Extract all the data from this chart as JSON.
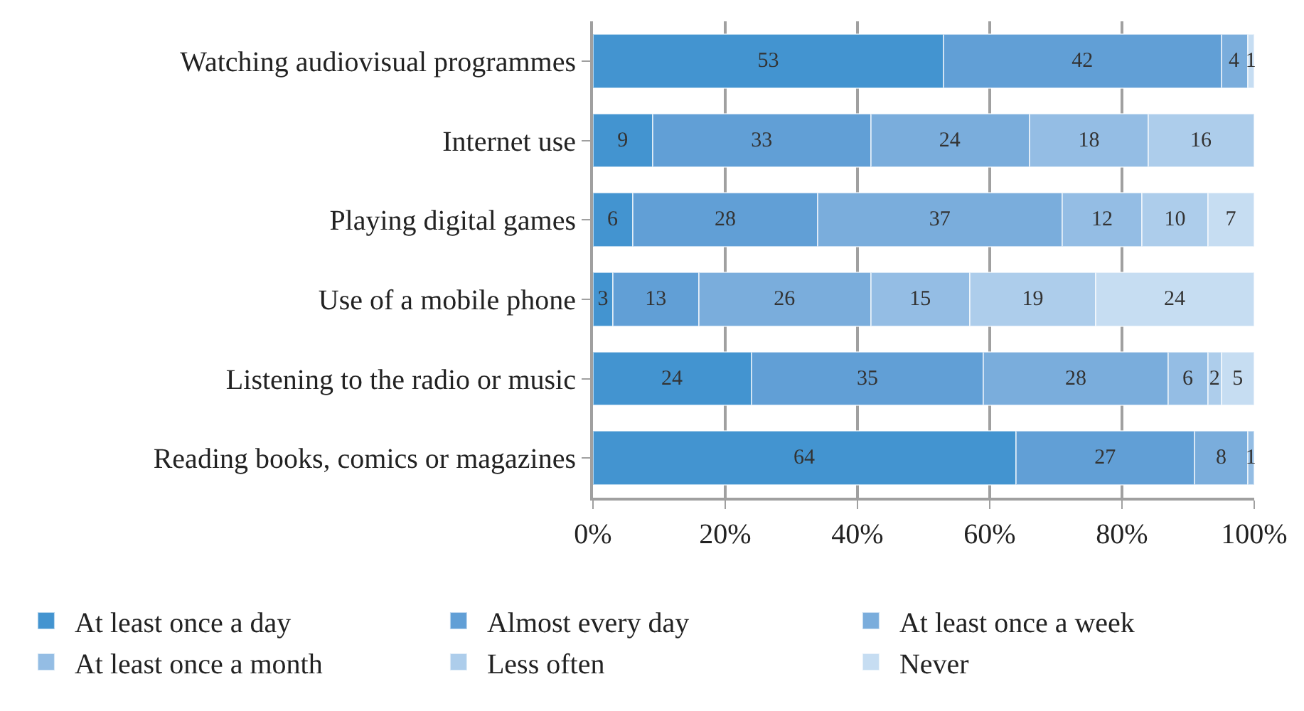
{
  "chart_data": {
    "type": "bar",
    "orientation": "horizontal",
    "stacked": true,
    "data_labels": true,
    "categories": [
      "Watching audiovisual programmes",
      "Internet use",
      "Playing digital games",
      "Use of a mobile phone",
      "Listening to the radio or music",
      "Reading books, comics or magazines"
    ],
    "series": [
      {
        "name": "At least once a day",
        "color": "#4394d0",
        "values": [
          53,
          9,
          6,
          3,
          24,
          64
        ]
      },
      {
        "name": "Almost every day",
        "color": "#619fd6",
        "values": [
          42,
          33,
          28,
          13,
          35,
          27
        ]
      },
      {
        "name": "At least once a week",
        "color": "#7aaddc",
        "values": [
          4,
          24,
          37,
          26,
          28,
          8
        ]
      },
      {
        "name": "At least once a month",
        "color": "#94bde4",
        "values": [
          null,
          18,
          12,
          15,
          6,
          1
        ]
      },
      {
        "name": "Less often",
        "color": "#adcdeb",
        "values": [
          null,
          16,
          10,
          19,
          2,
          null
        ]
      },
      {
        "name": "Never",
        "color": "#c6ddf2",
        "values": [
          1,
          null,
          7,
          24,
          5,
          null
        ]
      }
    ],
    "xlim": [
      0,
      100
    ],
    "xticks": [
      {
        "value": 0,
        "label": "0%"
      },
      {
        "value": 20,
        "label": "20%"
      },
      {
        "value": 40,
        "label": "40%"
      },
      {
        "value": 60,
        "label": "60%"
      },
      {
        "value": 80,
        "label": "80%"
      },
      {
        "value": 100,
        "label": "100%"
      }
    ],
    "grid": "x",
    "legend": "bottom"
  }
}
